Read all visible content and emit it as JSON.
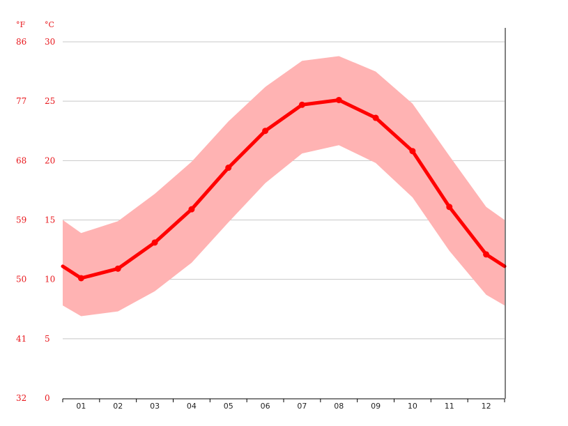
{
  "chart_data": {
    "type": "line",
    "units": {
      "fahrenheit": "°F",
      "celsius": "°C"
    },
    "categories": [
      "01",
      "02",
      "03",
      "04",
      "05",
      "06",
      "07",
      "08",
      "09",
      "10",
      "11",
      "12"
    ],
    "y_celsius_ticks": [
      "0",
      "5",
      "10",
      "15",
      "20",
      "25",
      "30"
    ],
    "y_fahrenheit_ticks": [
      "32",
      "41",
      "50",
      "59",
      "68",
      "77",
      "86"
    ],
    "ylim": [
      0,
      30
    ],
    "grid": true,
    "series": [
      {
        "values": [
          10.1,
          10.9,
          13.1,
          15.9,
          19.4,
          22.5,
          24.7,
          25.1,
          23.6,
          20.8,
          16.1,
          12.1
        ]
      }
    ],
    "band": {
      "max": [
        13.9,
        14.9,
        17.2,
        19.9,
        23.3,
        26.2,
        28.4,
        28.8,
        27.5,
        24.8,
        20.4,
        16.1
      ],
      "min": [
        6.9,
        7.3,
        9.0,
        11.4,
        14.8,
        18.1,
        20.6,
        21.3,
        19.8,
        16.9,
        12.4,
        8.7
      ]
    },
    "colors": {
      "line": "#ff0000",
      "band": "#ffb3b3",
      "grid": "#c8c8c8",
      "axis_label": "#e8171c"
    }
  }
}
